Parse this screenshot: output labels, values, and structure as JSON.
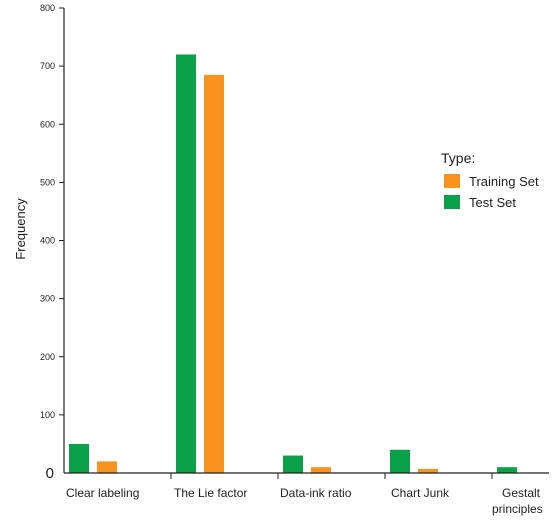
{
  "chart_data": {
    "type": "bar",
    "title": "",
    "xlabel": "",
    "ylabel": "Frequency",
    "ylim": [
      0,
      800
    ],
    "yticks": [
      0,
      100,
      200,
      300,
      400,
      500,
      600,
      700,
      800
    ],
    "grid": false,
    "legend_position": "right",
    "legend_title": "Type:",
    "categories": [
      "Clear labeling",
      "The Lie factor",
      "Data-ink ratio",
      "Chart Junk",
      "Gestalt principles"
    ],
    "series": [
      {
        "name": "Test Set",
        "color": "#0aa14a",
        "values": [
          50,
          720,
          30,
          40,
          10
        ]
      },
      {
        "name": "Training Set",
        "color": "#f7931e",
        "values": [
          20,
          685,
          10,
          7,
          0
        ]
      }
    ],
    "legend_order": [
      "Training Set",
      "Test Set"
    ]
  }
}
